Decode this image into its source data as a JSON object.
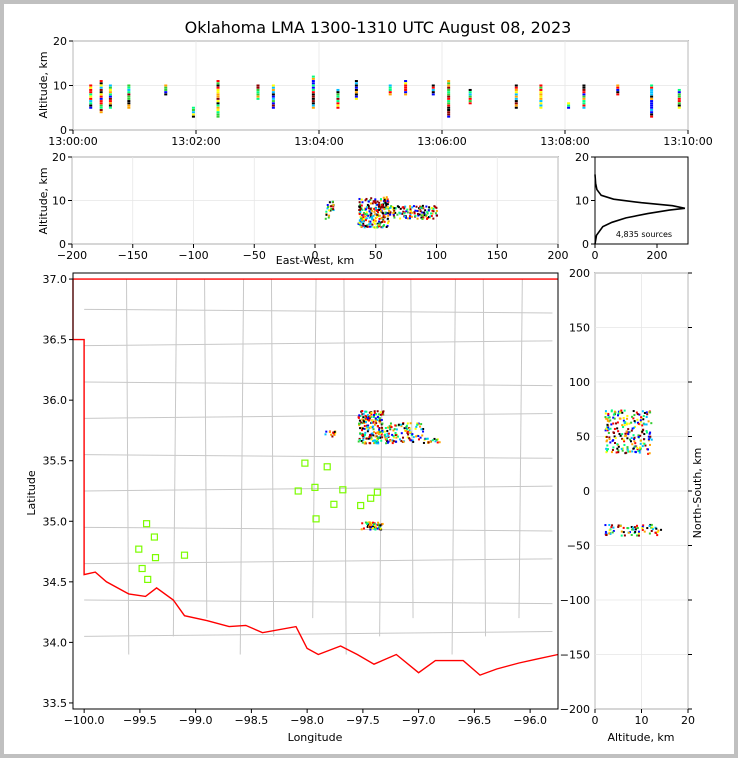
{
  "title": "Oklahoma LMA 1300-1310 UTC August 08, 2023",
  "colors": {
    "border": "#ff0000",
    "counties": "#c8c8c8",
    "stations": "#7cfc00"
  },
  "chart_data": [
    {
      "id": "time-height",
      "type": "scatter",
      "xlabel": "",
      "ylabel": "Altitude, km",
      "x_tick_labels": [
        "13:00:00",
        "13:02:00",
        "13:04:00",
        "13:06:00",
        "13:08:00",
        "13:10:00"
      ],
      "x_ticks_min": [
        0,
        2,
        4,
        6,
        8,
        10
      ],
      "xlim_min": [
        0,
        10
      ],
      "ylim": [
        0,
        20
      ],
      "y_ticks": [
        0,
        10,
        20
      ],
      "grid": true,
      "clusters": [
        {
          "t": 0.28,
          "z": [
            5,
            10
          ]
        },
        {
          "t": 0.45,
          "z": [
            4,
            11
          ]
        },
        {
          "t": 0.9,
          "z": [
            5,
            10
          ]
        },
        {
          "t": 0.6,
          "z": [
            5,
            10
          ]
        },
        {
          "t": 1.5,
          "z": [
            8,
            10
          ]
        },
        {
          "t": 1.95,
          "z": [
            3,
            5
          ]
        },
        {
          "t": 2.35,
          "z": [
            3,
            11
          ]
        },
        {
          "t": 3.0,
          "z": [
            7,
            10
          ]
        },
        {
          "t": 3.25,
          "z": [
            5,
            10
          ]
        },
        {
          "t": 3.9,
          "z": [
            5,
            12
          ]
        },
        {
          "t": 4.3,
          "z": [
            5,
            9
          ]
        },
        {
          "t": 4.6,
          "z": [
            7,
            11
          ]
        },
        {
          "t": 5.15,
          "z": [
            8,
            10
          ]
        },
        {
          "t": 5.4,
          "z": [
            8,
            11
          ]
        },
        {
          "t": 5.85,
          "z": [
            8,
            10
          ]
        },
        {
          "t": 6.1,
          "z": [
            3,
            11
          ]
        },
        {
          "t": 6.45,
          "z": [
            6,
            9
          ]
        },
        {
          "t": 7.2,
          "z": [
            5,
            10
          ]
        },
        {
          "t": 7.6,
          "z": [
            5,
            10
          ]
        },
        {
          "t": 8.05,
          "z": [
            5,
            6
          ]
        },
        {
          "t": 8.3,
          "z": [
            5,
            10
          ]
        },
        {
          "t": 8.85,
          "z": [
            8,
            10
          ]
        },
        {
          "t": 9.4,
          "z": [
            3,
            10
          ]
        },
        {
          "t": 9.85,
          "z": [
            5,
            9
          ]
        }
      ]
    },
    {
      "id": "ew-altitude",
      "type": "scatter",
      "xlabel": "East-West, km",
      "ylabel": "Altitude, km",
      "xlim": [
        -200,
        200
      ],
      "x_ticks": [
        -200,
        -150,
        -100,
        -50,
        0,
        50,
        100,
        150,
        200
      ],
      "ylim": [
        0,
        20
      ],
      "y_ticks": [
        0,
        10,
        20
      ],
      "grid": true,
      "clusters": [
        {
          "x": [
            8,
            15
          ],
          "z": [
            6,
            10
          ],
          "n": 25
        },
        {
          "x": [
            35,
            60
          ],
          "z": [
            4,
            11
          ],
          "n": 220
        },
        {
          "x": [
            55,
            100
          ],
          "z": [
            6,
            9
          ],
          "n": 140
        }
      ]
    },
    {
      "id": "altitude-histogram",
      "type": "line",
      "annotation": "4,835 sources",
      "xlim": [
        0,
        300
      ],
      "x_ticks": [
        0,
        200
      ],
      "ylim": [
        0,
        20
      ],
      "y_ticks": [
        0,
        10,
        20
      ],
      "profile": [
        [
          0,
          0
        ],
        [
          5,
          2
        ],
        [
          25,
          4
        ],
        [
          55,
          5
        ],
        [
          100,
          6
        ],
        [
          170,
          7
        ],
        [
          240,
          7.8
        ],
        [
          290,
          8.2
        ],
        [
          250,
          8.8
        ],
        [
          150,
          9.5
        ],
        [
          60,
          10.3
        ],
        [
          20,
          11.2
        ],
        [
          6,
          12.5
        ],
        [
          2,
          14
        ],
        [
          0,
          16
        ]
      ]
    },
    {
      "id": "plan-view",
      "type": "scatter",
      "xlabel": "Longitude",
      "ylabel": "Latitude",
      "xlim": [
        -100.1,
        -95.75
      ],
      "ylim": [
        33.45,
        37.05
      ],
      "x_ticks": [
        -100.0,
        -99.5,
        -99.0,
        -98.5,
        -98.0,
        -97.5,
        -97.0,
        -96.5,
        -96.0
      ],
      "x_tick_labels": [
        "−100.0",
        "−99.5",
        "−99.0",
        "−98.5",
        "−98.0",
        "−97.5",
        "−97.0",
        "−96.5",
        "−96.0"
      ],
      "y_ticks": [
        33.5,
        34.0,
        34.5,
        35.0,
        35.5,
        36.0,
        36.5,
        37.0
      ],
      "y_tick_labels": [
        "33.5",
        "34.0",
        "34.5",
        "35.0",
        "35.5",
        "36.0",
        "36.5",
        "37.0"
      ],
      "stations": [
        [
          -98.02,
          35.48
        ],
        [
          -97.82,
          35.45
        ],
        [
          -98.08,
          35.25
        ],
        [
          -97.93,
          35.28
        ],
        [
          -97.68,
          35.26
        ],
        [
          -97.52,
          35.13
        ],
        [
          -97.43,
          35.19
        ],
        [
          -97.37,
          35.24
        ],
        [
          -97.76,
          35.14
        ],
        [
          -97.92,
          35.02
        ],
        [
          -99.44,
          34.98
        ],
        [
          -99.37,
          34.87
        ],
        [
          -99.51,
          34.77
        ],
        [
          -99.36,
          34.7
        ],
        [
          -99.1,
          34.72
        ],
        [
          -99.48,
          34.61
        ],
        [
          -99.43,
          34.52
        ]
      ],
      "clusters": [
        {
          "lon": [
            -97.55,
            -97.32
          ],
          "lat": [
            35.65,
            35.92
          ],
          "n": 180
        },
        {
          "lon": [
            -97.32,
            -96.95
          ],
          "lat": [
            35.65,
            35.82
          ],
          "n": 110
        },
        {
          "lon": [
            -96.95,
            -96.82
          ],
          "lat": [
            35.65,
            35.7
          ],
          "n": 15
        },
        {
          "lon": [
            -97.85,
            -97.75
          ],
          "lat": [
            35.7,
            35.75
          ],
          "n": 12
        },
        {
          "lon": [
            -97.52,
            -97.33
          ],
          "lat": [
            34.94,
            35.0
          ],
          "n": 55
        }
      ]
    },
    {
      "id": "ns-altitude",
      "type": "scatter",
      "xlabel": "Altitude, km",
      "ylabel": "North-South, km",
      "xlim": [
        0,
        20
      ],
      "x_ticks": [
        0,
        10,
        20
      ],
      "ylim": [
        -200,
        200
      ],
      "y_ticks": [
        -200,
        -150,
        -100,
        -50,
        0,
        50,
        100,
        150,
        200
      ],
      "y_tick_labels": [
        "−200",
        "−150",
        "−100",
        "−50",
        "0",
        "50",
        "100",
        "150",
        "200"
      ],
      "clusters": [
        {
          "z": [
            2,
            12
          ],
          "y": [
            35,
            75
          ],
          "n": 220
        },
        {
          "z": [
            2,
            14
          ],
          "y": [
            -40,
            -30
          ],
          "n": 70
        }
      ]
    }
  ]
}
